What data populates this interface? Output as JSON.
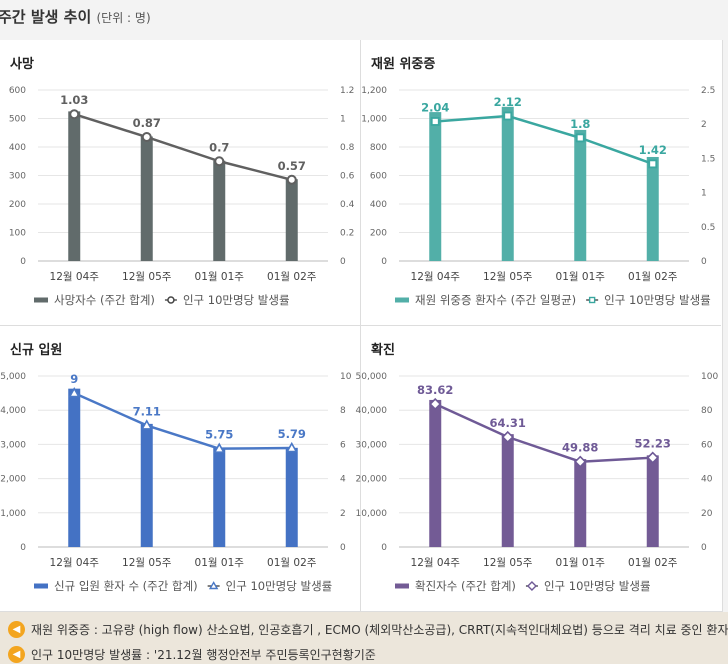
{
  "page": {
    "title": "주간 발생 추이",
    "unit": "(단위 : 명)"
  },
  "chart_data": [
    {
      "id": "deaths",
      "type": "bar+line",
      "title": "사망",
      "categories": [
        "12월 04주",
        "12월 05주",
        "01월 01주",
        "01월 02주"
      ],
      "bar_color": "#616b6b",
      "line_color": "#606060",
      "marker": "circle",
      "series": [
        {
          "name": "사망자수 (주간 합계)",
          "kind": "bar",
          "axis": "left",
          "values": [
            525,
            437,
            352,
            287
          ]
        },
        {
          "name": "인구 10만명당 발생률",
          "kind": "line",
          "axis": "right",
          "values": [
            1.03,
            0.87,
            0.7,
            0.57
          ],
          "labels": [
            "1.03",
            "0.87",
            "0.7",
            "0.57"
          ]
        }
      ],
      "left_axis": {
        "min": 0,
        "max": 600,
        "ticks": [
          0,
          100,
          200,
          300,
          400,
          500,
          600
        ],
        "tick_labels": [
          "0",
          "100",
          "200",
          "300",
          "400",
          "500",
          "600"
        ]
      },
      "right_axis": {
        "min": 0,
        "max": 1.2,
        "ticks": [
          0,
          0.2,
          0.4,
          0.6,
          0.8,
          1,
          1.2
        ],
        "tick_labels": [
          "0",
          "0.2",
          "0.4",
          "0.6",
          "0.8",
          "1",
          "1.2"
        ]
      }
    },
    {
      "id": "severe",
      "type": "bar+line",
      "title": "재원 위중증",
      "categories": [
        "12월 04주",
        "12월 05주",
        "01월 01주",
        "01월 02주"
      ],
      "bar_color": "#52afa8",
      "line_color": "#3aa7a0",
      "marker": "square",
      "series": [
        {
          "name": "재원 위중증 환자수 (주간 일평균)",
          "kind": "bar",
          "axis": "left",
          "values": [
            1045,
            1082,
            920,
            730
          ]
        },
        {
          "name": "인구 10만명당 발생률",
          "kind": "line",
          "axis": "right",
          "values": [
            2.04,
            2.12,
            1.8,
            1.42
          ],
          "labels": [
            "2.04",
            "2.12",
            "1.8",
            "1.42"
          ]
        }
      ],
      "left_axis": {
        "min": 0,
        "max": 1200,
        "ticks": [
          0,
          200,
          400,
          600,
          800,
          1000,
          1200
        ],
        "tick_labels": [
          "0",
          "200",
          "400",
          "600",
          "800",
          "1,000",
          "1,200"
        ]
      },
      "right_axis": {
        "min": 0,
        "max": 2.5,
        "ticks": [
          0,
          0.5,
          1,
          1.5,
          2,
          2.5
        ],
        "tick_labels": [
          "0",
          "0.5",
          "1",
          "1.5",
          "2",
          "2.5"
        ]
      }
    },
    {
      "id": "admissions",
      "type": "bar+line",
      "title": "신규 입원",
      "categories": [
        "12월 04주",
        "12월 05주",
        "01월 01주",
        "01월 02주"
      ],
      "bar_color": "#4472c4",
      "line_color": "#4a78c6",
      "marker": "triangle",
      "series": [
        {
          "name": "신규 입원 환자 수 (주간 합계)",
          "kind": "bar",
          "axis": "left",
          "values": [
            4630,
            3600,
            2900,
            2900
          ]
        },
        {
          "name": "인구 10만명당 발생률",
          "kind": "line",
          "axis": "right",
          "values": [
            9,
            7.11,
            5.75,
            5.79
          ],
          "labels": [
            "9",
            "7.11",
            "5.75",
            "5.79"
          ]
        }
      ],
      "left_axis": {
        "min": 0,
        "max": 5000,
        "ticks": [
          0,
          1000,
          2000,
          3000,
          4000,
          5000
        ],
        "tick_labels": [
          "0",
          "1,000",
          "2,000",
          "3,000",
          "4,000",
          "5,000"
        ]
      },
      "right_axis": {
        "min": 0,
        "max": 10,
        "ticks": [
          0,
          2,
          4,
          6,
          8,
          10
        ],
        "tick_labels": [
          "0",
          "2",
          "4",
          "6",
          "8",
          "10"
        ]
      }
    },
    {
      "id": "confirmed",
      "type": "bar+line",
      "title": "확진",
      "categories": [
        "12월 04주",
        "12월 05주",
        "01월 01주",
        "01월 02주"
      ],
      "bar_color": "#735b95",
      "line_color": "#6f5a96",
      "marker": "diamond",
      "series": [
        {
          "name": "확진자수 (주간 합계)",
          "kind": "bar",
          "axis": "left",
          "values": [
            43000,
            33000,
            25700,
            26800
          ]
        },
        {
          "name": "인구 10만명당 발생률",
          "kind": "line",
          "axis": "right",
          "values": [
            83.62,
            64.31,
            49.88,
            52.23
          ],
          "labels": [
            "83.62",
            "64.31",
            "49.88",
            "52.23"
          ]
        }
      ],
      "left_axis": {
        "min": 0,
        "max": 50000,
        "ticks": [
          0,
          10000,
          20000,
          30000,
          40000,
          50000
        ],
        "tick_labels": [
          "0",
          "10,000",
          "20,000",
          "30,000",
          "40,000",
          "50,000"
        ]
      },
      "right_axis": {
        "min": 0,
        "max": 100,
        "ticks": [
          0,
          20,
          40,
          60,
          80,
          100
        ],
        "tick_labels": [
          "0",
          "20",
          "40",
          "60",
          "80",
          "100"
        ]
      }
    }
  ],
  "notes": [
    "재원 위중증 : 고유량 (high flow) 산소요법, 인공호흡기 , ECMO (체외막산소공급), CRRT(지속적인대체요법) 등으로 격리 치료 중인 환자",
    "인구 10만명당 발생률 : '21.12월 행정안전부 주민등록인구현황기준"
  ],
  "icons": {
    "note": "speaker-icon"
  }
}
